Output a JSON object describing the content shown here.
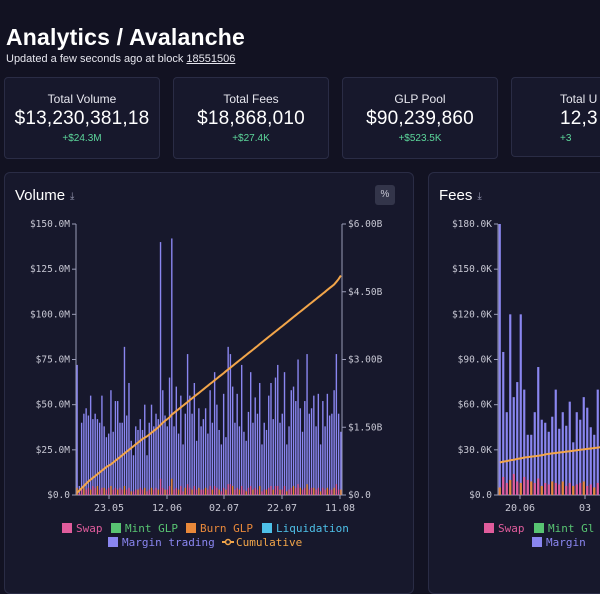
{
  "header": {
    "title": "Analytics / Avalanche",
    "subtitle_prefix": "Updated a few seconds ago at block",
    "block": "18551506"
  },
  "cards": [
    {
      "label": "Total Volume",
      "value": "$13,230,381,18",
      "delta": "+$24.3M"
    },
    {
      "label": "Total Fees",
      "value": "$18,868,010",
      "delta": "+$27.4K"
    },
    {
      "label": "GLP Pool",
      "value": "$90,239,860",
      "delta": "+$523.5K"
    },
    {
      "label": "Total U",
      "value": "12,3",
      "delta": "+3"
    }
  ],
  "volume_panel": {
    "title": "Volume",
    "percent_label": "%"
  },
  "fees_panel": {
    "title": "Fees"
  },
  "colors": {
    "swap": "#e05c9c",
    "mint": "#58c472",
    "burn": "#e8883a",
    "liquidation": "#4ec0e8",
    "margin": "#8a86f0",
    "cumulative": "#f2a54a",
    "accent_green": "#5cd69b"
  },
  "chart_data": [
    {
      "type": "bar",
      "title": "Volume",
      "x_ticks": [
        "23.05",
        "12.06",
        "02.07",
        "22.07",
        "11.08"
      ],
      "y_left_ticks": [
        "$0.0",
        "$25.0M",
        "$50.0M",
        "$75.0M",
        "$100.0M",
        "$125.0M",
        "$150.0M"
      ],
      "y_right_ticks": [
        "$0.0",
        "$1.50B",
        "$3.00B",
        "$4.50B",
        "$6.00B"
      ],
      "ylim": [
        0,
        150
      ],
      "ylim_right": [
        0,
        6
      ],
      "legend": [
        "Swap",
        "Mint GLP",
        "Burn GLP",
        "Liquidation",
        "Margin trading",
        "Cumulative"
      ],
      "legend_position": "bottom",
      "grid": false,
      "margin_values": [
        72,
        5,
        40,
        45,
        48,
        44,
        55,
        42,
        45,
        42,
        40,
        55,
        38,
        32,
        34,
        58,
        35,
        52,
        52,
        40,
        40,
        82,
        44,
        62,
        30,
        22,
        38,
        36,
        42,
        36,
        50,
        22,
        40,
        50,
        38,
        45,
        42,
        140,
        58,
        44,
        38,
        65,
        142,
        38,
        60,
        34,
        55,
        28,
        45,
        78,
        55,
        45,
        62,
        30,
        48,
        38,
        42,
        48,
        34,
        58,
        40,
        68,
        50,
        36,
        28,
        56,
        32,
        82,
        78,
        60,
        40,
        56,
        38,
        72,
        35,
        30,
        46,
        68,
        40,
        54,
        45,
        62,
        28,
        40,
        36,
        55,
        62,
        42,
        65,
        72,
        40,
        45,
        68,
        28,
        38,
        58,
        60,
        52,
        75,
        48,
        35,
        52,
        78,
        45,
        48,
        55,
        38,
        56,
        28,
        52,
        38,
        56,
        44,
        45,
        58,
        78,
        45,
        35
      ],
      "swap_values": [
        4,
        1,
        3,
        4,
        3,
        4,
        3,
        5,
        4,
        5,
        3,
        4,
        4,
        3,
        4,
        5,
        3,
        4,
        3,
        4,
        3,
        5,
        3,
        4,
        2,
        2,
        3,
        3,
        4,
        3,
        4,
        2,
        3,
        4,
        3,
        4,
        3,
        9,
        4,
        3,
        3,
        5,
        9,
        3,
        4,
        3,
        5,
        2,
        4,
        6,
        4,
        3,
        5,
        3,
        4,
        3,
        3,
        4,
        3,
        5,
        3,
        5,
        4,
        3,
        2,
        4,
        3,
        6,
        6,
        5,
        3,
        4,
        3,
        5,
        3,
        2,
        4,
        5,
        3,
        4,
        3,
        5,
        2,
        3,
        3,
        4,
        5,
        3,
        5,
        5,
        3,
        3,
        5,
        2,
        3,
        4,
        5,
        4,
        6,
        4,
        3,
        4,
        6,
        3,
        4,
        4,
        3,
        4,
        2,
        4,
        3,
        4,
        3,
        3,
        4,
        6,
        3,
        3
      ],
      "cumulative": [
        0.05,
        0.1,
        0.15,
        0.2,
        0.25,
        0.3,
        0.34,
        0.38,
        0.42,
        0.46,
        0.5,
        0.54,
        0.58,
        0.62,
        0.65,
        0.68,
        0.72,
        0.76,
        0.8,
        0.84,
        0.88,
        0.92,
        0.96,
        1.0,
        1.04,
        1.08,
        1.12,
        1.16,
        1.2,
        1.24,
        1.27,
        1.3,
        1.34,
        1.38,
        1.42,
        1.46,
        1.5,
        1.55,
        1.6,
        1.64,
        1.68,
        1.72,
        1.78,
        1.82,
        1.86,
        1.9,
        1.94,
        1.98,
        2.02,
        2.06,
        2.1,
        2.14,
        2.18,
        2.22,
        2.26,
        2.3,
        2.34,
        2.38,
        2.42,
        2.46,
        2.5,
        2.54,
        2.58,
        2.62,
        2.66,
        2.7,
        2.74,
        2.78,
        2.82,
        2.86,
        2.9,
        2.94,
        2.98,
        3.02,
        3.06,
        3.1,
        3.14,
        3.18,
        3.22,
        3.26,
        3.3,
        3.34,
        3.38,
        3.42,
        3.46,
        3.5,
        3.54,
        3.58,
        3.62,
        3.66,
        3.7,
        3.74,
        3.78,
        3.82,
        3.86,
        3.9,
        3.94,
        3.98,
        4.02,
        4.06,
        4.1,
        4.14,
        4.18,
        4.22,
        4.26,
        4.3,
        4.34,
        4.38,
        4.42,
        4.46,
        4.5,
        4.54,
        4.58,
        4.62,
        4.66,
        4.72,
        4.78,
        4.86
      ]
    },
    {
      "type": "bar",
      "title": "Fees",
      "x_ticks": [
        "20.06",
        "03"
      ],
      "y_left_ticks": [
        "$0.0",
        "$30.0K",
        "$60.0K",
        "$90.0K",
        "$120.0K",
        "$150.0K",
        "$180.0K"
      ],
      "ylim": [
        0,
        180
      ],
      "legend": [
        "Swap",
        "Mint Gl",
        "Margin"
      ],
      "legend_position": "bottom",
      "grid": false,
      "margin_values": [
        180,
        95,
        55,
        120,
        65,
        75,
        120,
        70,
        40,
        40,
        55,
        85,
        50,
        48,
        42,
        52,
        70,
        44,
        55,
        46,
        62,
        35,
        55,
        50,
        65,
        58,
        45,
        40,
        70,
        55,
        48,
        92,
        50,
        68,
        55,
        42,
        38,
        62,
        45,
        58
      ],
      "swap_values": [
        5,
        12,
        8,
        10,
        14,
        9,
        8,
        12,
        10,
        9,
        8,
        11,
        6,
        8,
        7,
        9,
        8,
        7,
        9,
        6,
        8,
        6,
        7,
        8,
        9,
        6,
        7,
        5,
        8,
        7,
        6,
        9,
        6,
        7,
        8,
        5,
        6,
        7,
        6,
        8
      ],
      "cumulative": [
        0.72,
        0.74,
        0.75,
        0.77,
        0.78,
        0.8,
        0.81,
        0.83,
        0.84,
        0.85,
        0.86,
        0.87,
        0.88,
        0.9,
        0.91,
        0.92,
        0.93,
        0.94,
        0.95,
        0.96,
        0.97,
        0.98,
        0.99,
        1.0,
        1.01,
        1.02,
        1.03,
        1.04,
        1.05,
        1.06,
        1.07,
        1.08,
        1.09,
        1.1,
        1.11,
        1.12,
        1.13,
        1.14,
        1.15,
        1.16
      ]
    }
  ]
}
